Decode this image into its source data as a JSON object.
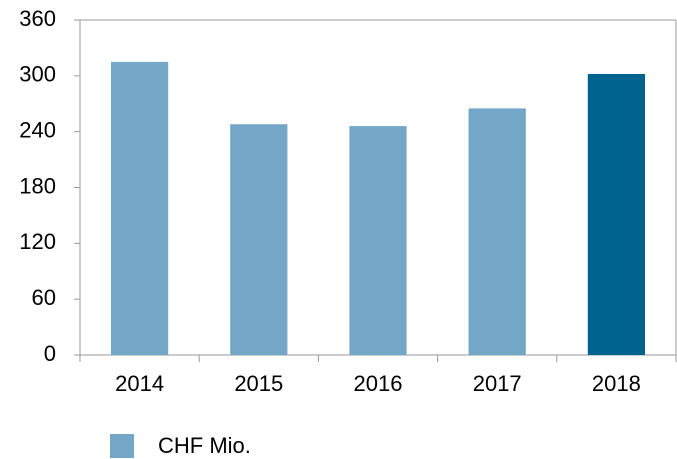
{
  "chart_data": {
    "type": "bar",
    "categories": [
      "2014",
      "2015",
      "2016",
      "2017",
      "2018"
    ],
    "series": [
      {
        "name": "CHF Mio.",
        "color": "#74a6c7",
        "values": [
          315,
          248,
          246,
          265,
          302
        ]
      }
    ],
    "bar_colors": [
      "#74a6c7",
      "#74a6c7",
      "#74a6c7",
      "#74a6c7",
      "#00638f"
    ],
    "ylim": [
      0,
      360
    ],
    "yticks": [
      0,
      60,
      120,
      180,
      240,
      300,
      360
    ],
    "grid": false,
    "legend": "bottom"
  }
}
